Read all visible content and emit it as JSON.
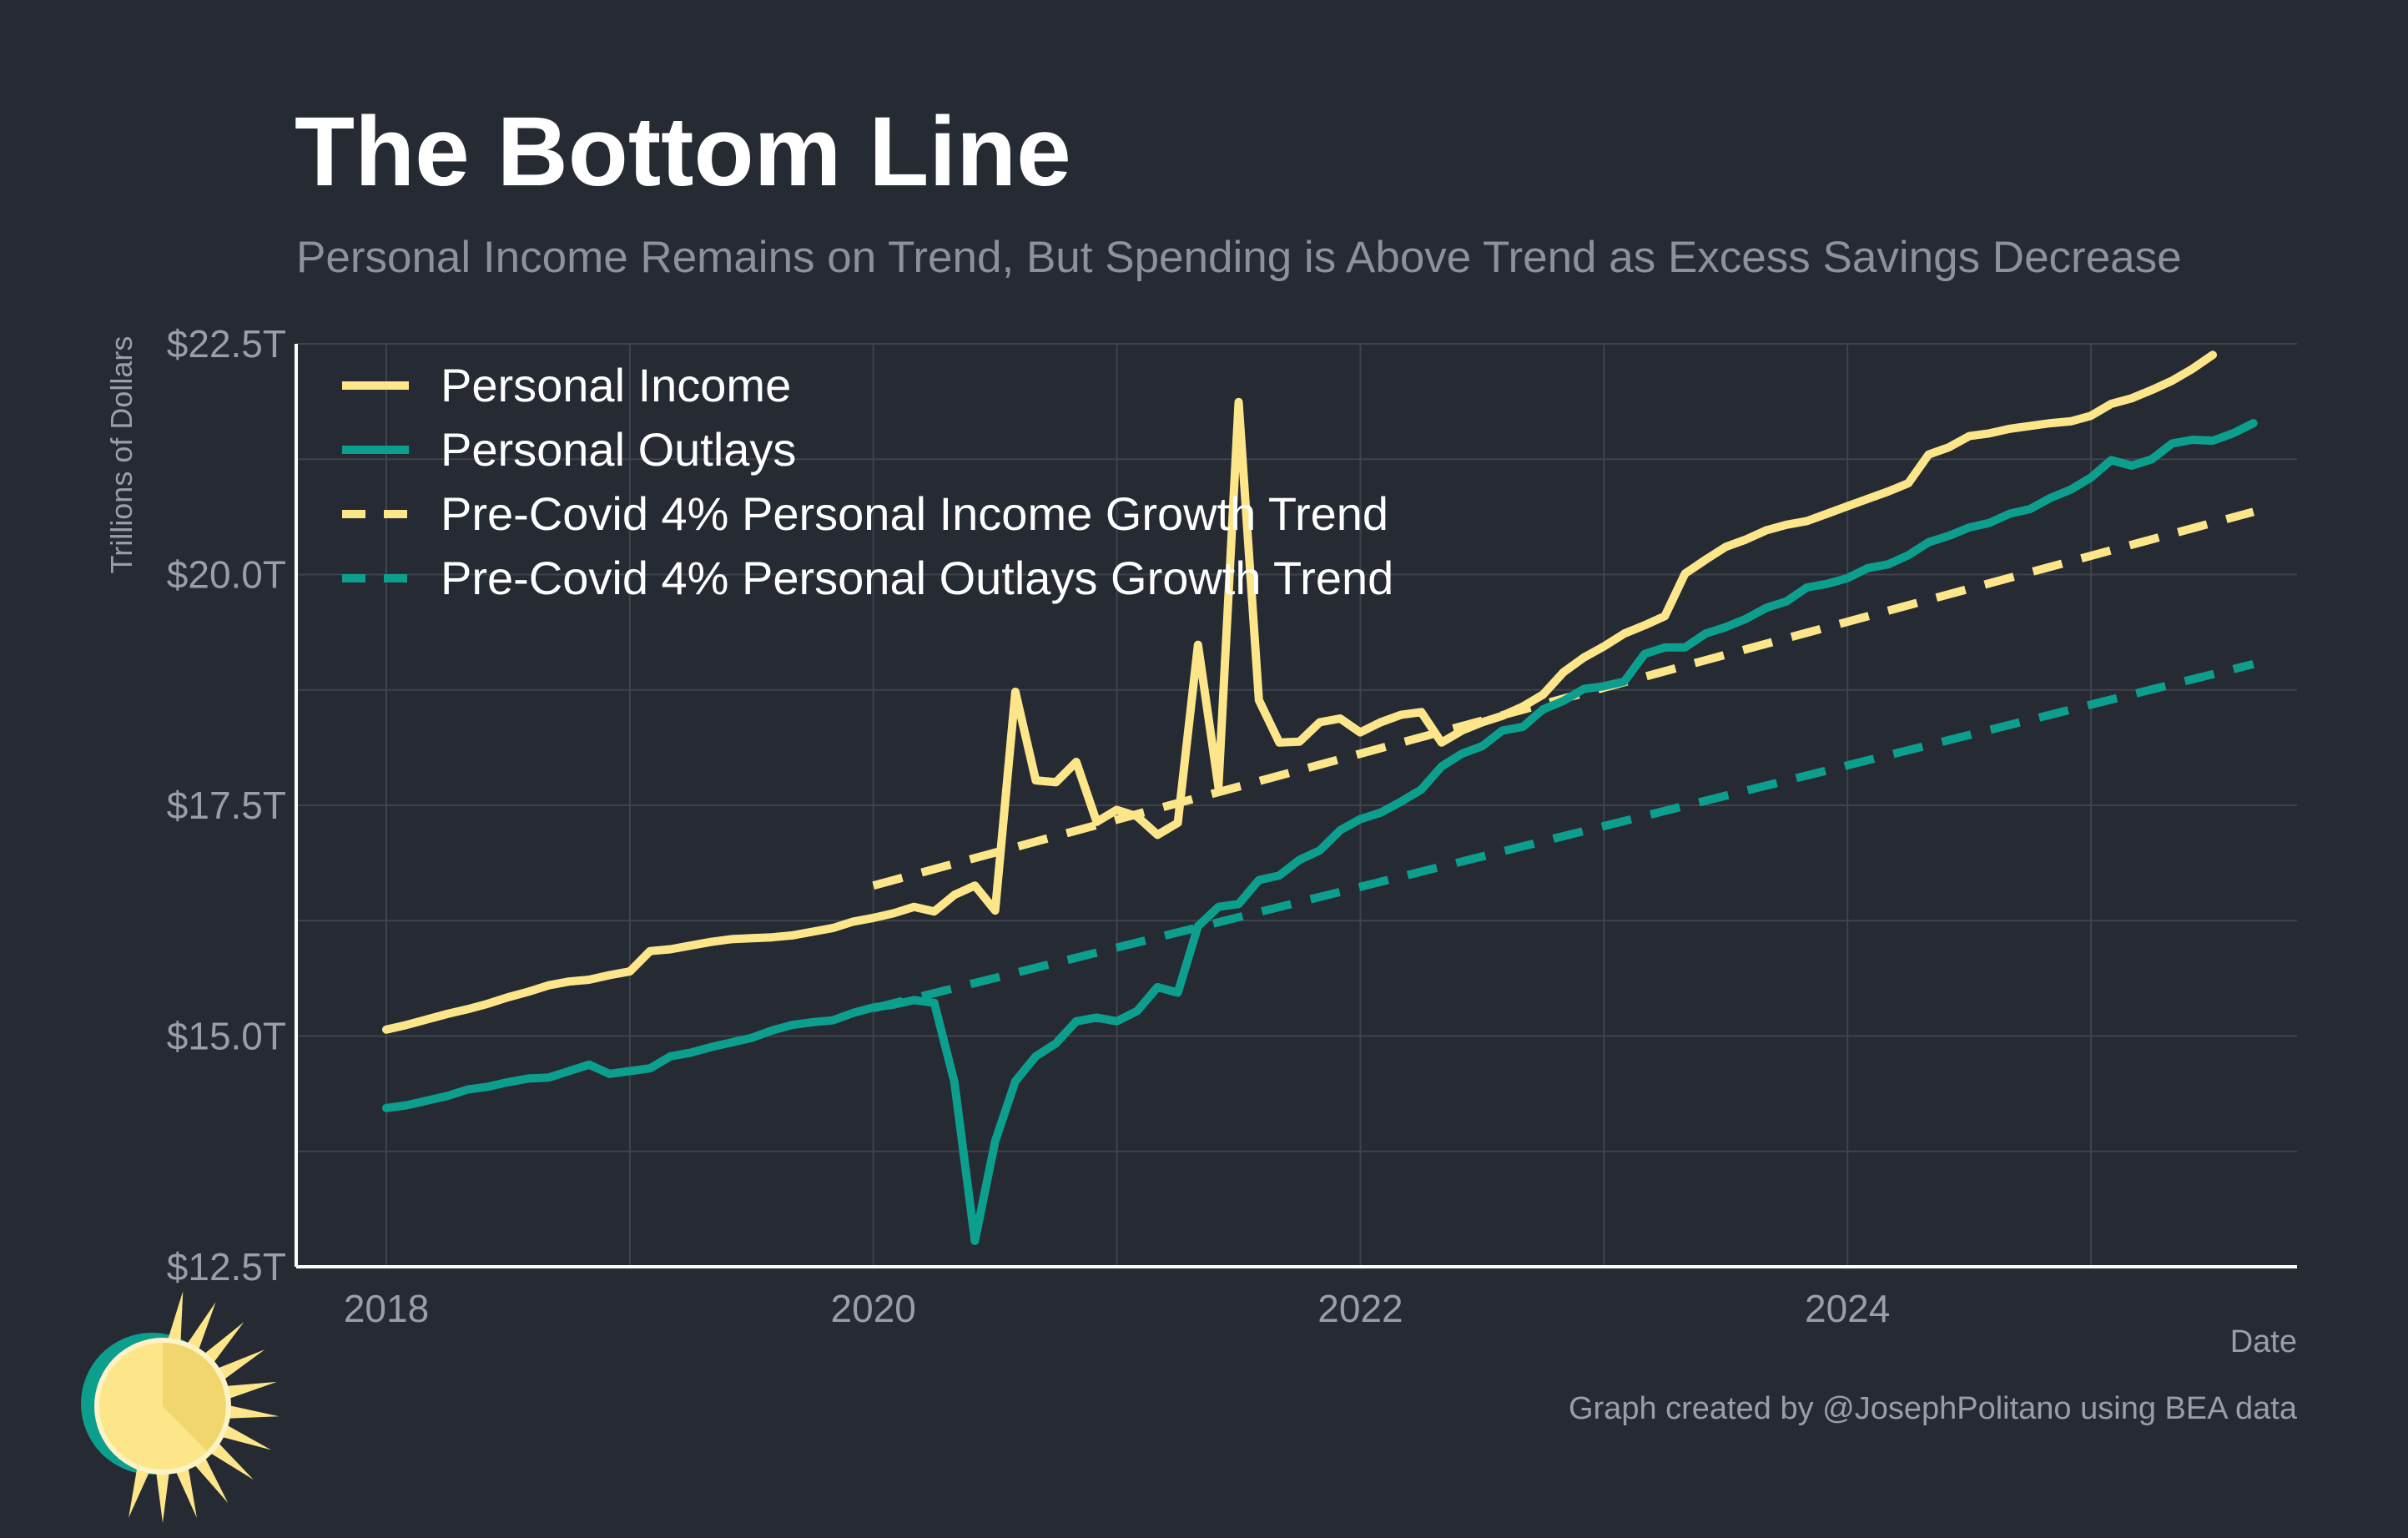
{
  "colors": {
    "background": "#252a33",
    "title": "#ffffff",
    "subtitle": "#8d9199",
    "axis_text": "#9a9ea6",
    "grid": "#3e434c",
    "axis_line": "#ffffff",
    "income": "#fde68a",
    "outlays": "#0d9f8e"
  },
  "logo": {
    "name": "sun-logo"
  },
  "chart_data": {
    "type": "line",
    "title": "The Bottom Line",
    "subtitle": "Personal Income Remains on Trend, But Spending is Above Trend as Excess Savings Decrease",
    "ylabel": "Trillions of Dollars",
    "xlabel": "Date",
    "source": "Graph created by @JosephPolitano using BEA data",
    "xlim": [
      2018.0,
      2025.85
    ],
    "ylim": [
      12.5,
      22.5
    ],
    "xticks": [
      {
        "value": 2018,
        "label": "2018"
      },
      {
        "value": 2020,
        "label": "2020"
      },
      {
        "value": 2022,
        "label": "2022"
      },
      {
        "value": 2024,
        "label": "2024"
      }
    ],
    "yticks": [
      {
        "value": 12.5,
        "label": "$12.5T"
      },
      {
        "value": 15.0,
        "label": "$15.0T"
      },
      {
        "value": 17.5,
        "label": "$17.5T"
      },
      {
        "value": 20.0,
        "label": "$20.0T"
      },
      {
        "value": 22.5,
        "label": "$22.5T"
      }
    ],
    "grid": true,
    "legend_position": "top-left",
    "series": [
      {
        "name": "Personal Income",
        "color": "#fde68a",
        "dash": "solid",
        "points": [
          [
            2018.0,
            15.07
          ],
          [
            2018.083,
            15.12
          ],
          [
            2018.167,
            15.18
          ],
          [
            2018.25,
            15.24
          ],
          [
            2018.333,
            15.29
          ],
          [
            2018.417,
            15.35
          ],
          [
            2018.5,
            15.42
          ],
          [
            2018.583,
            15.48
          ],
          [
            2018.667,
            15.55
          ],
          [
            2018.75,
            15.59
          ],
          [
            2018.833,
            15.61
          ],
          [
            2018.917,
            15.66
          ],
          [
            2019.0,
            15.7
          ],
          [
            2019.083,
            15.92
          ],
          [
            2019.167,
            15.94
          ],
          [
            2019.25,
            15.98
          ],
          [
            2019.333,
            16.02
          ],
          [
            2019.417,
            16.05
          ],
          [
            2019.5,
            16.06
          ],
          [
            2019.583,
            16.07
          ],
          [
            2019.667,
            16.09
          ],
          [
            2019.75,
            16.13
          ],
          [
            2019.833,
            16.17
          ],
          [
            2019.917,
            16.24
          ],
          [
            2020.0,
            16.28
          ],
          [
            2020.083,
            16.33
          ],
          [
            2020.167,
            16.4
          ],
          [
            2020.25,
            16.35
          ],
          [
            2020.333,
            16.53
          ],
          [
            2020.417,
            16.63
          ],
          [
            2020.5,
            16.36
          ],
          [
            2020.583,
            18.73
          ],
          [
            2020.667,
            17.77
          ],
          [
            2020.75,
            17.75
          ],
          [
            2020.833,
            17.97
          ],
          [
            2020.917,
            17.32
          ],
          [
            2020.999,
            17.45
          ],
          [
            2021.083,
            17.38
          ],
          [
            2021.167,
            17.18
          ],
          [
            2021.25,
            17.31
          ],
          [
            2021.333,
            19.24
          ],
          [
            2021.417,
            17.7
          ],
          [
            2021.5,
            21.87
          ],
          [
            2021.583,
            18.64
          ],
          [
            2021.667,
            18.18
          ],
          [
            2021.75,
            18.19
          ],
          [
            2021.833,
            18.4
          ],
          [
            2021.917,
            18.44
          ],
          [
            2021.999,
            18.29
          ],
          [
            2022.083,
            18.4
          ],
          [
            2022.167,
            18.48
          ],
          [
            2022.25,
            18.51
          ],
          [
            2022.333,
            18.18
          ],
          [
            2022.417,
            18.31
          ],
          [
            2022.5,
            18.4
          ],
          [
            2022.583,
            18.47
          ],
          [
            2022.667,
            18.57
          ],
          [
            2022.75,
            18.7
          ],
          [
            2022.833,
            18.94
          ],
          [
            2022.917,
            19.1
          ],
          [
            2022.999,
            19.22
          ],
          [
            2023.083,
            19.36
          ],
          [
            2023.167,
            19.45
          ],
          [
            2023.25,
            19.55
          ],
          [
            2023.333,
            20.01
          ],
          [
            2023.417,
            20.16
          ],
          [
            2023.5,
            20.3
          ],
          [
            2023.583,
            20.38
          ],
          [
            2023.667,
            20.48
          ],
          [
            2023.75,
            20.54
          ],
          [
            2023.833,
            20.58
          ],
          [
            2023.917,
            20.66
          ],
          [
            2023.999,
            20.74
          ],
          [
            2024.083,
            20.82
          ],
          [
            2024.167,
            20.9
          ],
          [
            2024.25,
            20.99
          ],
          [
            2024.333,
            21.3
          ],
          [
            2024.417,
            21.38
          ],
          [
            2024.5,
            21.5
          ],
          [
            2024.583,
            21.53
          ],
          [
            2024.667,
            21.58
          ],
          [
            2024.75,
            21.61
          ],
          [
            2024.833,
            21.64
          ],
          [
            2024.917,
            21.66
          ],
          [
            2024.999,
            21.72
          ],
          [
            2025.083,
            21.85
          ],
          [
            2025.167,
            21.91
          ],
          [
            2025.25,
            22.0
          ],
          [
            2025.333,
            22.1
          ],
          [
            2025.417,
            22.23
          ],
          [
            2025.5,
            22.38
          ]
        ]
      },
      {
        "name": "Personal Outlays",
        "color": "#0d9f8e",
        "dash": "solid",
        "points": [
          [
            2018.0,
            14.22
          ],
          [
            2018.083,
            14.25
          ],
          [
            2018.167,
            14.3
          ],
          [
            2018.25,
            14.35
          ],
          [
            2018.333,
            14.42
          ],
          [
            2018.417,
            14.45
          ],
          [
            2018.5,
            14.5
          ],
          [
            2018.583,
            14.54
          ],
          [
            2018.667,
            14.55
          ],
          [
            2018.75,
            14.62
          ],
          [
            2018.833,
            14.69
          ],
          [
            2018.917,
            14.59
          ],
          [
            2019.0,
            14.62
          ],
          [
            2019.083,
            14.65
          ],
          [
            2019.167,
            14.78
          ],
          [
            2019.25,
            14.82
          ],
          [
            2019.333,
            14.88
          ],
          [
            2019.417,
            14.93
          ],
          [
            2019.5,
            14.98
          ],
          [
            2019.583,
            15.06
          ],
          [
            2019.667,
            15.12
          ],
          [
            2019.75,
            15.15
          ],
          [
            2019.833,
            15.17
          ],
          [
            2019.917,
            15.25
          ],
          [
            2020.0,
            15.31
          ],
          [
            2020.083,
            15.34
          ],
          [
            2020.167,
            15.39
          ],
          [
            2020.25,
            15.36
          ],
          [
            2020.333,
            14.5
          ],
          [
            2020.417,
            12.78
          ],
          [
            2020.5,
            13.86
          ],
          [
            2020.583,
            14.51
          ],
          [
            2020.667,
            14.78
          ],
          [
            2020.75,
            14.92
          ],
          [
            2020.833,
            15.16
          ],
          [
            2020.917,
            15.2
          ],
          [
            2020.999,
            15.16
          ],
          [
            2021.083,
            15.27
          ],
          [
            2021.167,
            15.53
          ],
          [
            2021.25,
            15.47
          ],
          [
            2021.333,
            16.19
          ],
          [
            2021.417,
            16.4
          ],
          [
            2021.5,
            16.43
          ],
          [
            2021.583,
            16.69
          ],
          [
            2021.667,
            16.74
          ],
          [
            2021.75,
            16.91
          ],
          [
            2021.833,
            17.01
          ],
          [
            2021.917,
            17.23
          ],
          [
            2021.999,
            17.35
          ],
          [
            2022.083,
            17.42
          ],
          [
            2022.167,
            17.54
          ],
          [
            2022.25,
            17.67
          ],
          [
            2022.333,
            17.92
          ],
          [
            2022.417,
            18.06
          ],
          [
            2022.5,
            18.14
          ],
          [
            2022.583,
            18.31
          ],
          [
            2022.667,
            18.35
          ],
          [
            2022.75,
            18.54
          ],
          [
            2022.833,
            18.63
          ],
          [
            2022.917,
            18.76
          ],
          [
            2022.999,
            18.79
          ],
          [
            2023.083,
            18.84
          ],
          [
            2023.167,
            19.14
          ],
          [
            2023.25,
            19.21
          ],
          [
            2023.333,
            19.21
          ],
          [
            2023.417,
            19.36
          ],
          [
            2023.5,
            19.43
          ],
          [
            2023.583,
            19.52
          ],
          [
            2023.667,
            19.64
          ],
          [
            2023.75,
            19.71
          ],
          [
            2023.833,
            19.86
          ],
          [
            2023.917,
            19.9
          ],
          [
            2023.999,
            19.96
          ],
          [
            2024.083,
            20.07
          ],
          [
            2024.167,
            20.11
          ],
          [
            2024.25,
            20.21
          ],
          [
            2024.333,
            20.35
          ],
          [
            2024.417,
            20.42
          ],
          [
            2024.5,
            20.51
          ],
          [
            2024.583,
            20.56
          ],
          [
            2024.667,
            20.66
          ],
          [
            2024.75,
            20.71
          ],
          [
            2024.833,
            20.83
          ],
          [
            2024.917,
            20.92
          ],
          [
            2024.999,
            21.05
          ],
          [
            2025.083,
            21.24
          ],
          [
            2025.167,
            21.18
          ],
          [
            2025.25,
            21.25
          ],
          [
            2025.333,
            21.42
          ],
          [
            2025.417,
            21.46
          ],
          [
            2025.5,
            21.45
          ],
          [
            2025.583,
            21.53
          ],
          [
            2025.667,
            21.64
          ]
        ]
      },
      {
        "name": "Pre-Covid 4% Personal Income Growth Trend",
        "color": "#fde68a",
        "dash": "dashed",
        "points": [
          [
            2020.0,
            16.63
          ],
          [
            2025.667,
            20.68
          ]
        ]
      },
      {
        "name": "Pre-Covid 4% Personal Outlays Growth Trend",
        "color": "#0d9f8e",
        "dash": "dashed",
        "points": [
          [
            2020.0,
            15.3
          ],
          [
            2025.667,
            19.03
          ]
        ]
      }
    ]
  }
}
